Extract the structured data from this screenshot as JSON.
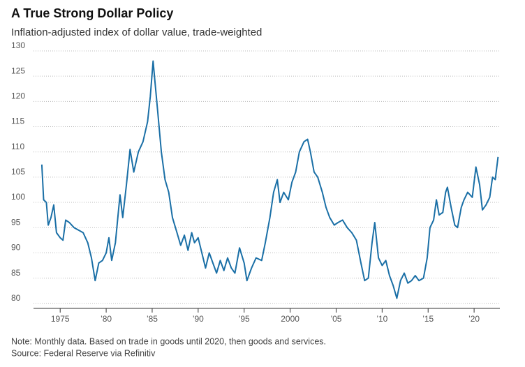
{
  "chart_data": {
    "type": "line",
    "title": "A True Strong Dollar Policy",
    "subtitle": "Inflation-adjusted index of dollar value, trade-weighted",
    "notes": [
      "Note: Monthly data. Based on trade in goods until 2020, then goods and services.",
      "Source: Federal Reserve via Refinitiv"
    ],
    "color": "#1a6fa6",
    "grid": true,
    "xlim": [
      1972.1,
      2022.8
    ],
    "xticks": [
      {
        "value": 1975,
        "label": "1975"
      },
      {
        "value": 1980,
        "label": "’80"
      },
      {
        "value": 1985,
        "label": "’85"
      },
      {
        "value": 1990,
        "label": "’90"
      },
      {
        "value": 1995,
        "label": "’95"
      },
      {
        "value": 2000,
        "label": "2000"
      },
      {
        "value": 2005,
        "label": "’05"
      },
      {
        "value": 2010,
        "label": "’10"
      },
      {
        "value": 2015,
        "label": "’15"
      },
      {
        "value": 2020,
        "label": "’20"
      }
    ],
    "ylim": [
      79,
      130
    ],
    "yticks": [
      80,
      85,
      90,
      95,
      100,
      105,
      110,
      115,
      120,
      125,
      130
    ],
    "x": [
      1973.0,
      1973.2,
      1973.5,
      1973.7,
      1974.0,
      1974.3,
      1974.6,
      1975.0,
      1975.3,
      1975.6,
      1976.0,
      1976.5,
      1977.0,
      1977.5,
      1978.0,
      1978.4,
      1978.8,
      1979.2,
      1979.6,
      1980.0,
      1980.3,
      1980.6,
      1981.0,
      1981.5,
      1981.8,
      1982.2,
      1982.6,
      1983.0,
      1983.5,
      1984.0,
      1984.5,
      1984.8,
      1985.1,
      1985.3,
      1985.6,
      1986.0,
      1986.4,
      1986.8,
      1987.2,
      1987.7,
      1988.1,
      1988.5,
      1988.9,
      1989.3,
      1989.6,
      1990.0,
      1990.4,
      1990.8,
      1991.2,
      1991.6,
      1992.0,
      1992.4,
      1992.8,
      1993.2,
      1993.6,
      1994.0,
      1994.5,
      1995.0,
      1995.3,
      1995.8,
      1996.3,
      1996.9,
      1997.3,
      1997.8,
      1998.2,
      1998.6,
      1998.9,
      1999.3,
      1999.8,
      2000.2,
      2000.6,
      2001.0,
      2001.5,
      2001.9,
      2002.2,
      2002.6,
      2003.0,
      2003.5,
      2003.9,
      2004.3,
      2004.8,
      2005.2,
      2005.7,
      2006.2,
      2006.7,
      2007.2,
      2007.7,
      2008.1,
      2008.5,
      2008.9,
      2009.2,
      2009.6,
      2010.0,
      2010.4,
      2010.8,
      2011.2,
      2011.6,
      2012.0,
      2012.4,
      2012.8,
      2013.2,
      2013.6,
      2014.0,
      2014.5,
      2014.9,
      2015.2,
      2015.6,
      2015.9,
      2016.2,
      2016.6,
      2016.9,
      2017.1,
      2017.5,
      2017.9,
      2018.2,
      2018.6,
      2018.9,
      2019.3,
      2019.8,
      2020.2,
      2020.6,
      2020.9,
      2021.3,
      2021.7,
      2022.0,
      2022.3,
      2022.6
    ],
    "values": [
      107.5,
      100.5,
      100,
      95.5,
      97,
      99.5,
      94,
      93,
      92.5,
      96.5,
      96,
      95,
      94.5,
      94,
      92,
      89,
      84.5,
      88,
      88.5,
      90,
      93,
      88.5,
      92,
      101.5,
      97,
      103.5,
      110.5,
      106,
      110,
      112,
      116,
      121,
      128,
      124,
      118,
      110,
      104.5,
      102,
      97,
      94,
      91.5,
      93.5,
      90.5,
      94,
      92,
      93,
      90,
      87,
      90,
      88,
      86,
      88.5,
      86.5,
      89,
      87,
      86,
      91,
      88,
      84.5,
      87,
      89,
      88.5,
      92,
      97,
      102,
      104.5,
      100,
      102,
      100.5,
      104,
      106,
      110,
      112,
      112.5,
      110,
      106,
      105,
      102,
      99,
      97,
      95.5,
      96,
      96.5,
      95,
      94,
      92.5,
      88,
      84.5,
      85,
      92,
      96,
      89,
      87.5,
      88.5,
      85.5,
      83.5,
      81,
      84.5,
      86,
      84,
      84.5,
      85.5,
      84.5,
      85,
      89,
      95,
      96.5,
      100.5,
      97.5,
      98,
      102,
      103,
      99,
      95.5,
      95,
      99,
      100.5,
      102,
      101,
      107,
      103.5,
      98.5,
      99.5,
      101,
      105,
      104.5,
      109
    ]
  }
}
